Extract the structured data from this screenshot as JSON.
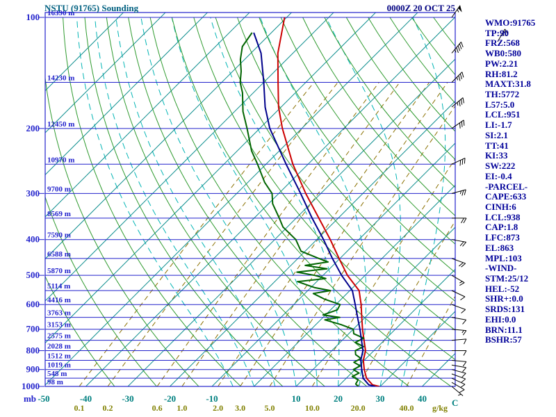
{
  "header": {
    "title": "NSTU (91765) Sounding",
    "datetime": "0000Z 20 OCT 25"
  },
  "stats": [
    "WMO:91765",
    "TP:90",
    "FRZ:568",
    "WB0:580",
    "PW:2.21",
    "RH:81.2",
    "MAXT:31.8",
    "TH:5772",
    "L57:5.0",
    "LCL:951",
    "LI:-1.7",
    "SI:2.1",
    "TT:41",
    "KI:33",
    "SW:222",
    "EI:-0.4",
    "-PARCEL-",
    "CAPE:633",
    "CINH:6",
    "LCL:938",
    "CAP:1.8",
    "LFC:873",
    "EL:863",
    "MPL:103",
    "-WIND-",
    "STM:25/12",
    "HEL:-52",
    "SHR+:0.0",
    "SRDS:131",
    "EHI:0.0",
    "BRN:11.1",
    "BSHR:57"
  ],
  "axes": {
    "pressure_unit": "mb",
    "pressure_ticks": [
      100,
      200,
      300,
      400,
      500,
      600,
      700,
      800,
      900,
      1000
    ],
    "height_labels": [
      "16390 m",
      "14230 m",
      "12450 m",
      "10970 m",
      "9700 m",
      "8569 m",
      "7590 m",
      "6588 m",
      "5870 m",
      "5114 m",
      "4416 m",
      "3763 m",
      "3153 m",
      "2575 m",
      "2028 m",
      "1512 m",
      "1019 m",
      "548 m",
      "98 m"
    ],
    "temp_unit": "C",
    "temp_ticks": [
      -50,
      -40,
      -30,
      -20,
      -10,
      10,
      20,
      30,
      40
    ],
    "mixing_unit": "g/kg",
    "mixing_ticks": [
      0.1,
      0.2,
      0.6,
      1.0,
      2.0,
      3.0,
      5.0,
      10.0,
      20.0,
      40.0
    ],
    "mixing_labels": [
      "0.1",
      "0.2",
      "0.6",
      "1.0",
      "2.0",
      "3.0",
      "5.0",
      "10.0",
      "20.0",
      "40.0"
    ]
  },
  "colors": {
    "frame": "#2222CC",
    "pressure_line": "#2222CC",
    "isotherm": "#129090",
    "dry_adiabat": "#2E9A2E",
    "moist_adiabat": "#00B4B4",
    "mixing_ratio": "#8A7000",
    "temperature": "#CC0000",
    "dewpoint": "#006400",
    "parcel": "#00008B",
    "barb": "#000000"
  },
  "chart_data": {
    "type": "line",
    "variant": "skew-t-log-p-sounding",
    "title": "NSTU (91765) Sounding",
    "x_axis": {
      "label": "C",
      "tick_values": [
        -50,
        -40,
        -30,
        -20,
        -10,
        10,
        20,
        30,
        40
      ]
    },
    "y_axis": {
      "label": "mb",
      "scale": "log",
      "range": [
        100,
        1000
      ],
      "tick_values": [
        100,
        200,
        300,
        400,
        500,
        600,
        700,
        800,
        900,
        1000
      ]
    },
    "secondary_x_axis": {
      "label": "g/kg",
      "tick_values": [
        0.1,
        0.2,
        0.6,
        1.0,
        2.0,
        3.0,
        5.0,
        10.0,
        20.0,
        40.0
      ]
    },
    "series": [
      {
        "name": "temperature",
        "color": "#CC0000",
        "points": [
          [
            1000,
            29.8
          ],
          [
            990,
            27.8
          ],
          [
            950,
            24.8
          ],
          [
            900,
            22.2
          ],
          [
            850,
            19.8
          ],
          [
            800,
            18.0
          ],
          [
            750,
            15.2
          ],
          [
            700,
            12.2
          ],
          [
            650,
            9.2
          ],
          [
            600,
            6.0
          ],
          [
            550,
            2.2
          ],
          [
            500,
            -4.2
          ],
          [
            450,
            -10.2
          ],
          [
            400,
            -16.8
          ],
          [
            350,
            -24.6
          ],
          [
            300,
            -33.6
          ],
          [
            250,
            -43.6
          ],
          [
            200,
            -54.6
          ],
          [
            175,
            -60.6
          ],
          [
            150,
            -66.6
          ],
          [
            125,
            -73.6
          ],
          [
            100,
            -80.5
          ]
        ]
      },
      {
        "name": "dewpoint",
        "color": "#006400",
        "points": [
          [
            1000,
            24.8
          ],
          [
            985,
            23.6
          ],
          [
            960,
            23.2
          ],
          [
            940,
            21.0
          ],
          [
            920,
            21.8
          ],
          [
            900,
            19.6
          ],
          [
            880,
            20.4
          ],
          [
            860,
            18.0
          ],
          [
            840,
            18.8
          ],
          [
            820,
            16.6
          ],
          [
            800,
            15.6
          ],
          [
            780,
            16.6
          ],
          [
            760,
            13.6
          ],
          [
            740,
            14.6
          ],
          [
            720,
            11.2
          ],
          [
            700,
            10.0
          ],
          [
            680,
            6.0
          ],
          [
            660,
            1.0
          ],
          [
            650,
            4.0
          ],
          [
            640,
            -0.6
          ],
          [
            620,
            1.6
          ],
          [
            600,
            1.0
          ],
          [
            580,
            -4.0
          ],
          [
            560,
            -8.0
          ],
          [
            550,
            -4.6
          ],
          [
            540,
            -9.0
          ],
          [
            520,
            -14.6
          ],
          [
            510,
            -8.6
          ],
          [
            500,
            -12.0
          ],
          [
            490,
            -17.0
          ],
          [
            480,
            -10.6
          ],
          [
            470,
            -16.6
          ],
          [
            460,
            -12.0
          ],
          [
            450,
            -15.0
          ],
          [
            430,
            -21.0
          ],
          [
            400,
            -25.0
          ],
          [
            370,
            -31.0
          ],
          [
            350,
            -34.0
          ],
          [
            320,
            -39.0
          ],
          [
            300,
            -41.6
          ],
          [
            280,
            -46.0
          ],
          [
            250,
            -52.0
          ],
          [
            230,
            -56.6
          ],
          [
            200,
            -63.0
          ],
          [
            180,
            -68.0
          ],
          [
            160,
            -72.6
          ],
          [
            150,
            -75.6
          ],
          [
            140,
            -78.0
          ],
          [
            130,
            -81.0
          ],
          [
            120,
            -83.6
          ],
          [
            110,
            -84.6
          ]
        ]
      },
      {
        "name": "parcel",
        "color": "#00008B",
        "points": [
          [
            1000,
            28.8
          ],
          [
            990,
            26.9
          ],
          [
            950,
            24.0
          ],
          [
            900,
            21.6
          ],
          [
            850,
            19.2
          ],
          [
            800,
            17.4
          ],
          [
            750,
            14.6
          ],
          [
            700,
            11.6
          ],
          [
            650,
            8.2
          ],
          [
            600,
            4.6
          ],
          [
            550,
            0.6
          ],
          [
            500,
            -5.6
          ],
          [
            450,
            -11.8
          ],
          [
            400,
            -18.4
          ],
          [
            350,
            -26.2
          ],
          [
            300,
            -34.8
          ],
          [
            250,
            -45.2
          ],
          [
            200,
            -57.6
          ],
          [
            175,
            -63.8
          ],
          [
            150,
            -70.0
          ],
          [
            125,
            -77.6
          ],
          [
            110,
            -84.2
          ]
        ]
      }
    ],
    "winds": {
      "unit": "kt",
      "columns": [
        "pressure_mb",
        "direction_deg",
        "speed_kt"
      ],
      "barbs": [
        [
          1000,
          130,
          5
        ],
        [
          975,
          120,
          8
        ],
        [
          950,
          115,
          10
        ],
        [
          925,
          110,
          10
        ],
        [
          900,
          105,
          12
        ],
        [
          875,
          100,
          10
        ],
        [
          850,
          95,
          12
        ],
        [
          800,
          90,
          10
        ],
        [
          750,
          85,
          12
        ],
        [
          700,
          95,
          15
        ],
        [
          650,
          100,
          12
        ],
        [
          600,
          110,
          10
        ],
        [
          550,
          115,
          12
        ],
        [
          500,
          120,
          15
        ],
        [
          450,
          110,
          18
        ],
        [
          400,
          100,
          20
        ],
        [
          350,
          90,
          20
        ],
        [
          300,
          75,
          25
        ],
        [
          250,
          65,
          30
        ],
        [
          200,
          55,
          30
        ],
        [
          175,
          50,
          35
        ],
        [
          150,
          45,
          35
        ],
        [
          125,
          40,
          45
        ],
        [
          100,
          35,
          55
        ]
      ]
    },
    "upper_right_barb": {
      "x": 716,
      "y": 60,
      "dir": 30,
      "spd": 25
    }
  }
}
